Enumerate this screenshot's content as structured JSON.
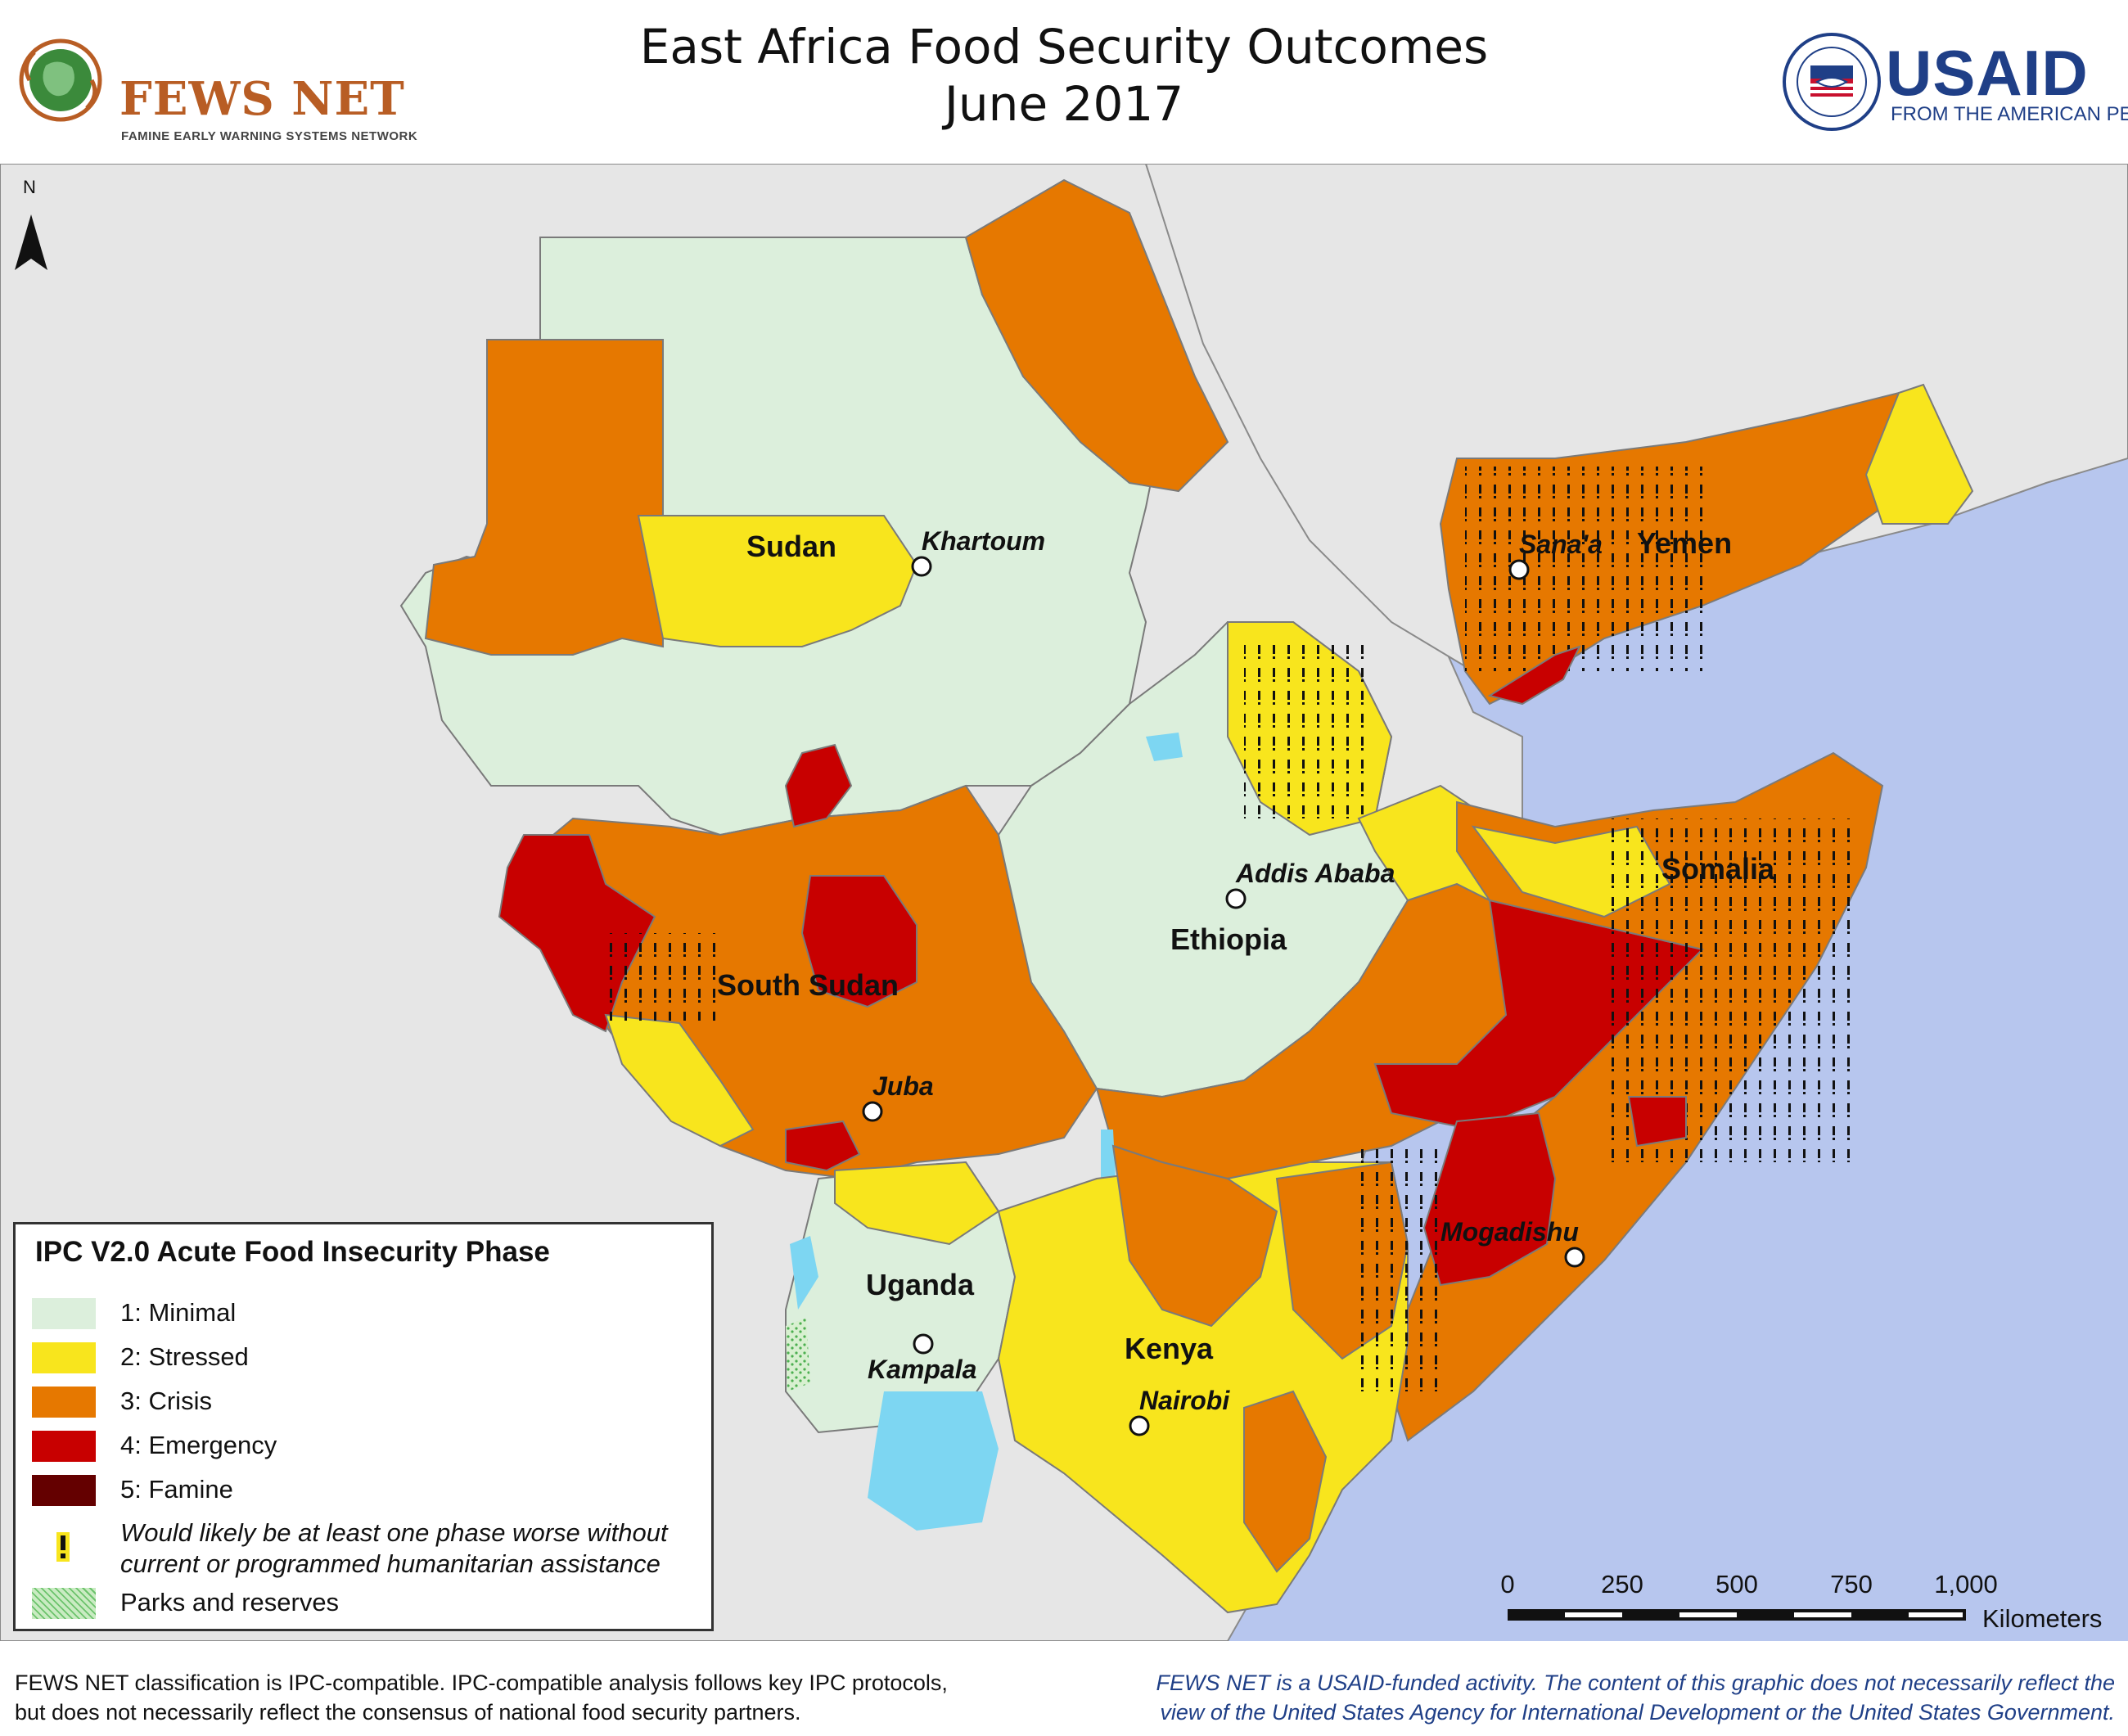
{
  "title": {
    "line1": "East Africa Food Security Outcomes",
    "line2": "June 2017"
  },
  "logos": {
    "fews_name": "FEWS NET",
    "fews_tag": "FAMINE EARLY WARNING SYSTEMS NETWORK",
    "usaid_name": "USAID",
    "usaid_tag": "FROM THE AMERICAN PEOPLE"
  },
  "north_arrow": {
    "label": "N"
  },
  "map": {
    "countries": [
      "Sudan",
      "South Sudan",
      "Ethiopia",
      "Somalia",
      "Yemen",
      "Uganda",
      "Kenya"
    ],
    "cities": [
      "Khartoum",
      "Sana'a",
      "Addis Ababa",
      "Juba",
      "Mogadishu",
      "Kampala",
      "Nairobi"
    ]
  },
  "legend": {
    "title": "IPC V2.0 Acute Food Insecurity Phase",
    "items": [
      {
        "label": "1: Minimal",
        "color": "#dcefdc"
      },
      {
        "label": "2: Stressed",
        "color": "#f8e51d"
      },
      {
        "label": "3: Crisis",
        "color": "#e67800"
      },
      {
        "label": "4: Emergency",
        "color": "#c80000"
      },
      {
        "label": "5: Famine",
        "color": "#640000"
      }
    ],
    "assistance_note_line1": "Would likely be at least one phase worse without",
    "assistance_note_line2": "current or programmed humanitarian assistance",
    "parks_label": "Parks and reserves"
  },
  "scale": {
    "ticks": [
      "0",
      "250",
      "500",
      "750",
      "1,000"
    ],
    "unit": "Kilometers"
  },
  "footer": {
    "left_line1": "FEWS NET classification is IPC-compatible. IPC-compatible analysis follows key IPC protocols,",
    "left_line2": "but does not necessarily reflect the consensus of national food security partners.",
    "right_line1": "FEWS NET is a USAID-funded activity. The content of this graphic does not necessarily reflect the",
    "right_line2": "view of the United States Agency for International Development or the United States Government."
  }
}
